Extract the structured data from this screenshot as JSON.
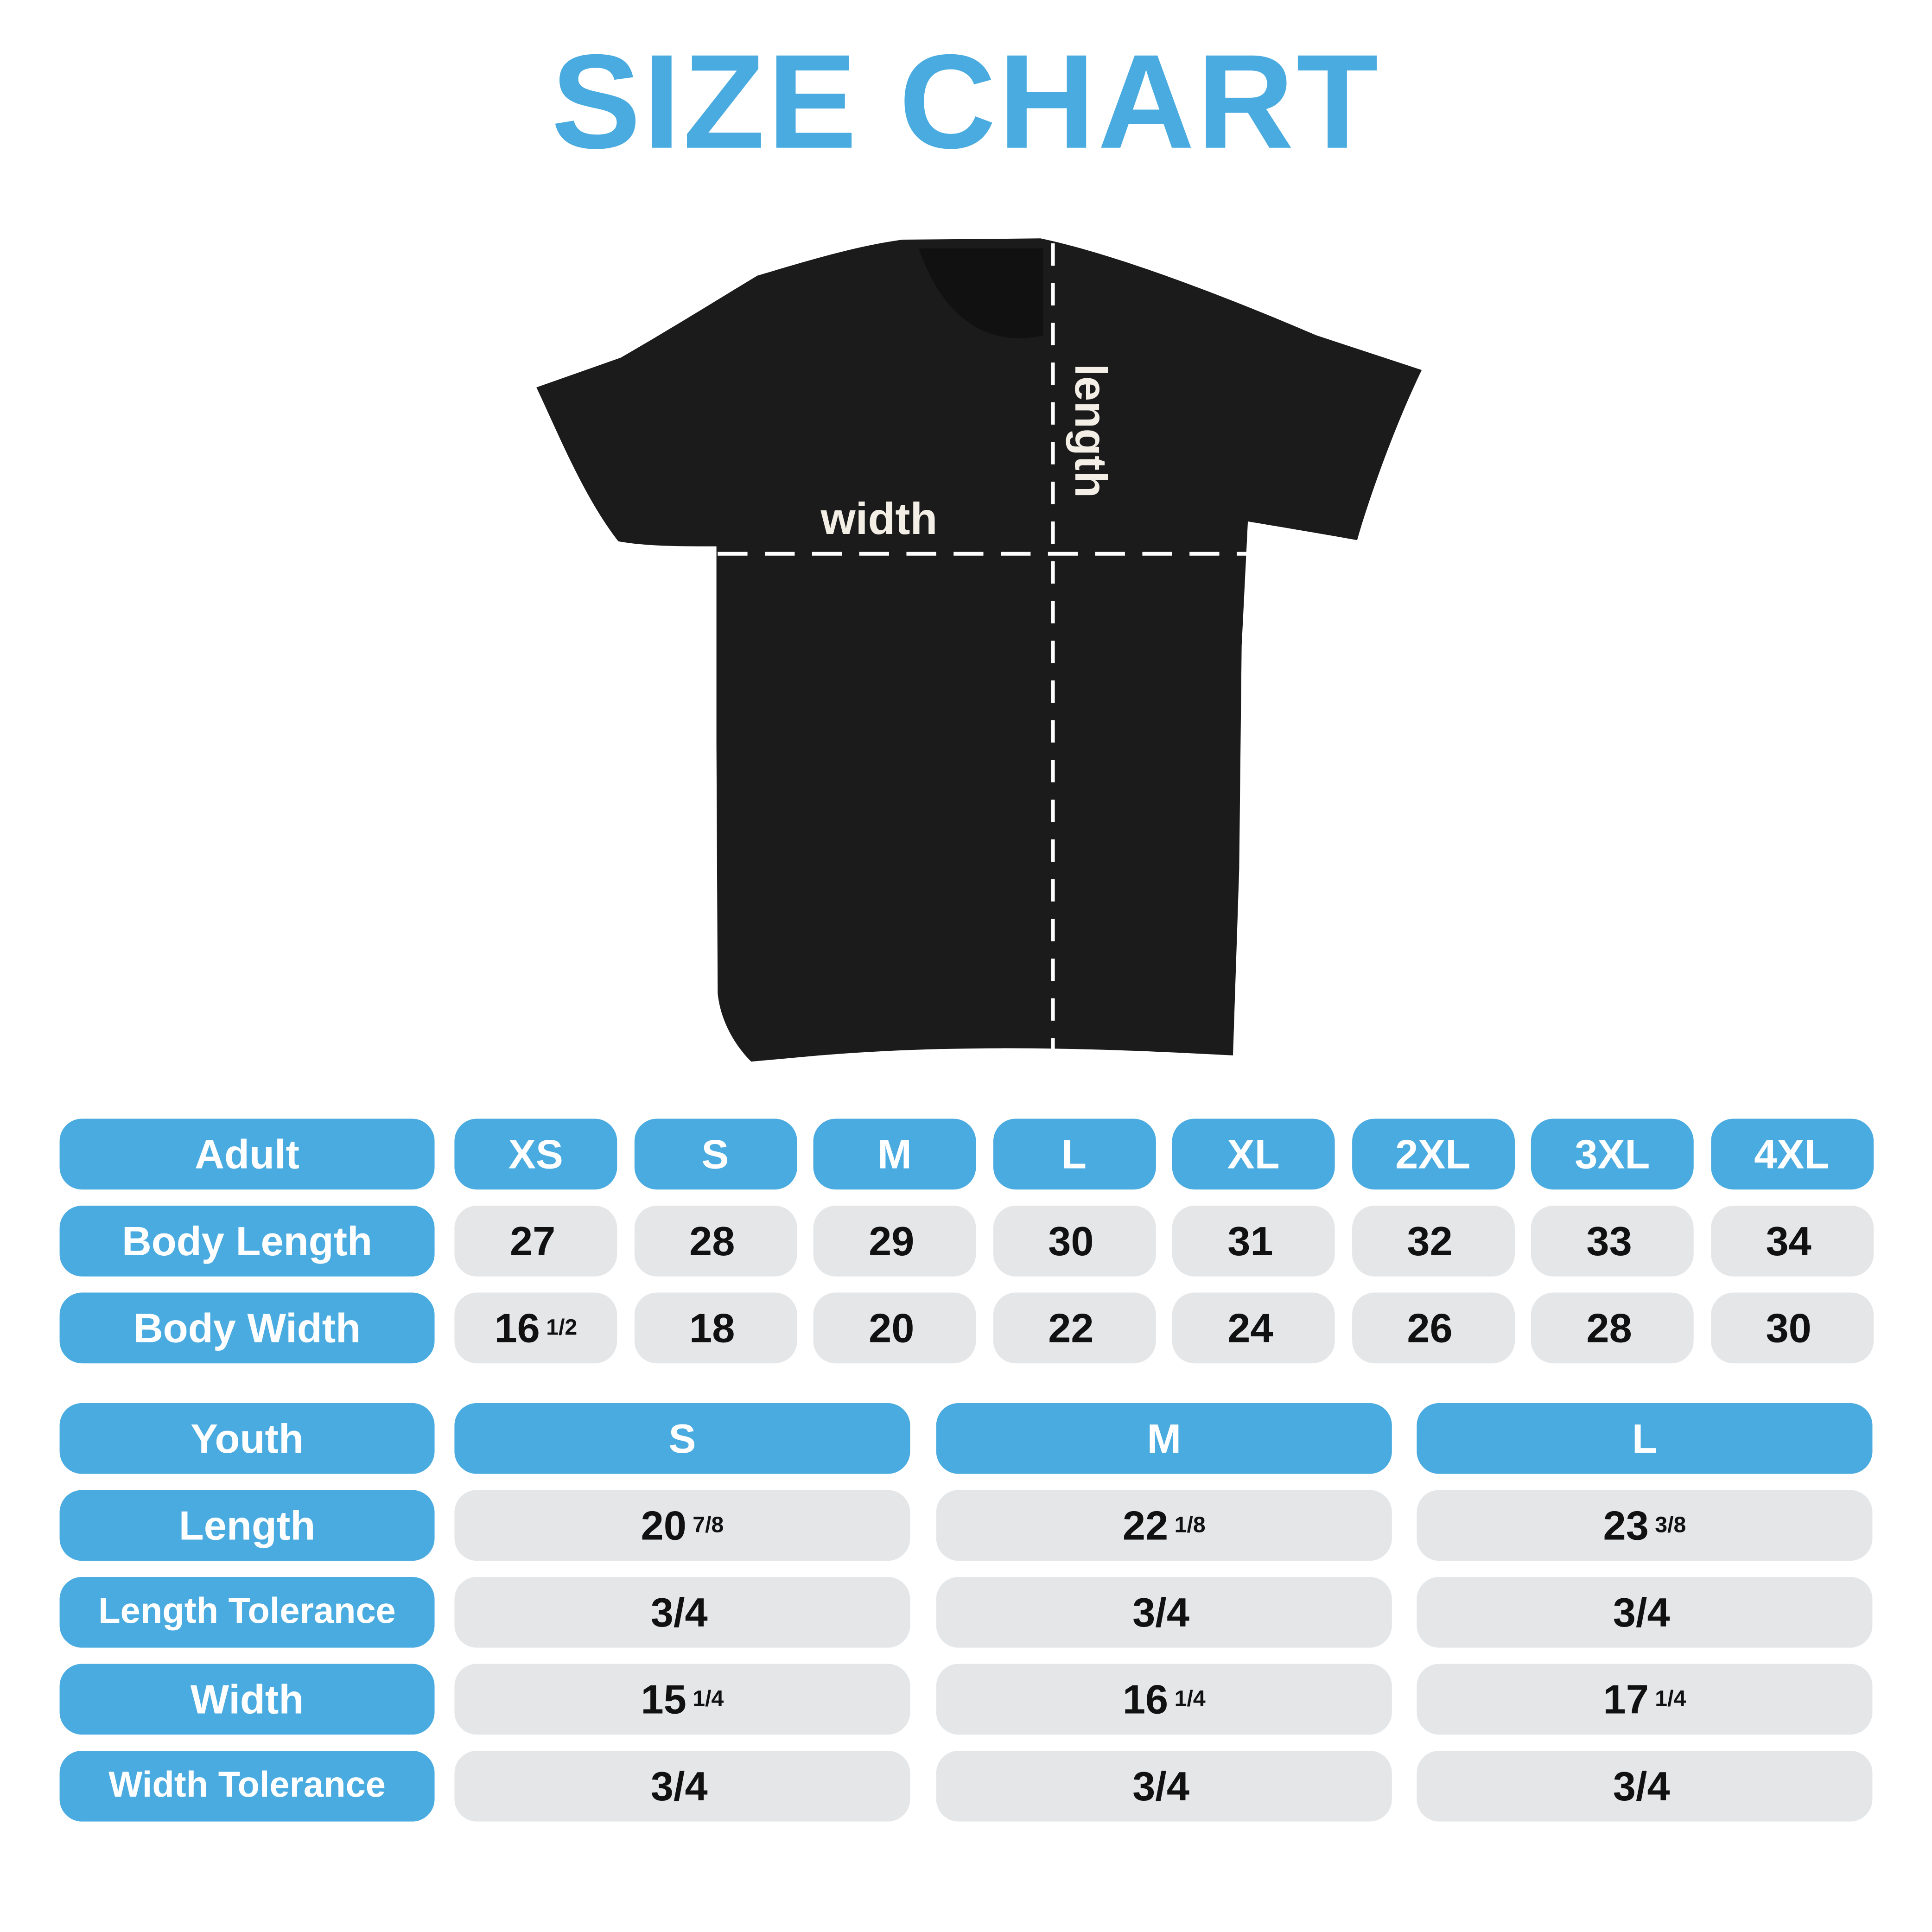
{
  "title": "SIZE CHART",
  "colors": {
    "accent": "#4aabe0",
    "cell": "#e5e6e8",
    "shirt": "#1b1b1b"
  },
  "diagram": {
    "width_label": "width",
    "length_label": "length"
  },
  "adult": {
    "header": "Adult",
    "sizes": [
      "XS",
      "S",
      "M",
      "L",
      "XL",
      "2XL",
      "3XL",
      "4XL"
    ],
    "rows": [
      {
        "label": "Body Length",
        "values": [
          {
            "whole": "27"
          },
          {
            "whole": "28"
          },
          {
            "whole": "29"
          },
          {
            "whole": "30"
          },
          {
            "whole": "31"
          },
          {
            "whole": "32"
          },
          {
            "whole": "33"
          },
          {
            "whole": "34"
          }
        ]
      },
      {
        "label": "Body Width",
        "values": [
          {
            "whole": "16",
            "frac": "1/2"
          },
          {
            "whole": "18"
          },
          {
            "whole": "20"
          },
          {
            "whole": "22"
          },
          {
            "whole": "24"
          },
          {
            "whole": "26"
          },
          {
            "whole": "28"
          },
          {
            "whole": "30"
          }
        ]
      }
    ]
  },
  "youth": {
    "header": "Youth",
    "sizes": [
      "S",
      "M",
      "L"
    ],
    "rows": [
      {
        "label": "Length",
        "values": [
          {
            "whole": "20",
            "frac": "7/8"
          },
          {
            "whole": "22",
            "frac": "1/8"
          },
          {
            "whole": "23",
            "frac": "3/8"
          }
        ]
      },
      {
        "label": "Length Tolerance",
        "values": [
          {
            "whole": "3/4"
          },
          {
            "whole": "3/4"
          },
          {
            "whole": "3/4"
          }
        ]
      },
      {
        "label": "Width",
        "values": [
          {
            "whole": "15",
            "frac": "1/4"
          },
          {
            "whole": "16",
            "frac": "1/4"
          },
          {
            "whole": "17",
            "frac": "1/4"
          }
        ]
      },
      {
        "label": "Width Tolerance",
        "values": [
          {
            "whole": "3/4"
          },
          {
            "whole": "3/4"
          },
          {
            "whole": "3/4"
          }
        ]
      }
    ]
  }
}
